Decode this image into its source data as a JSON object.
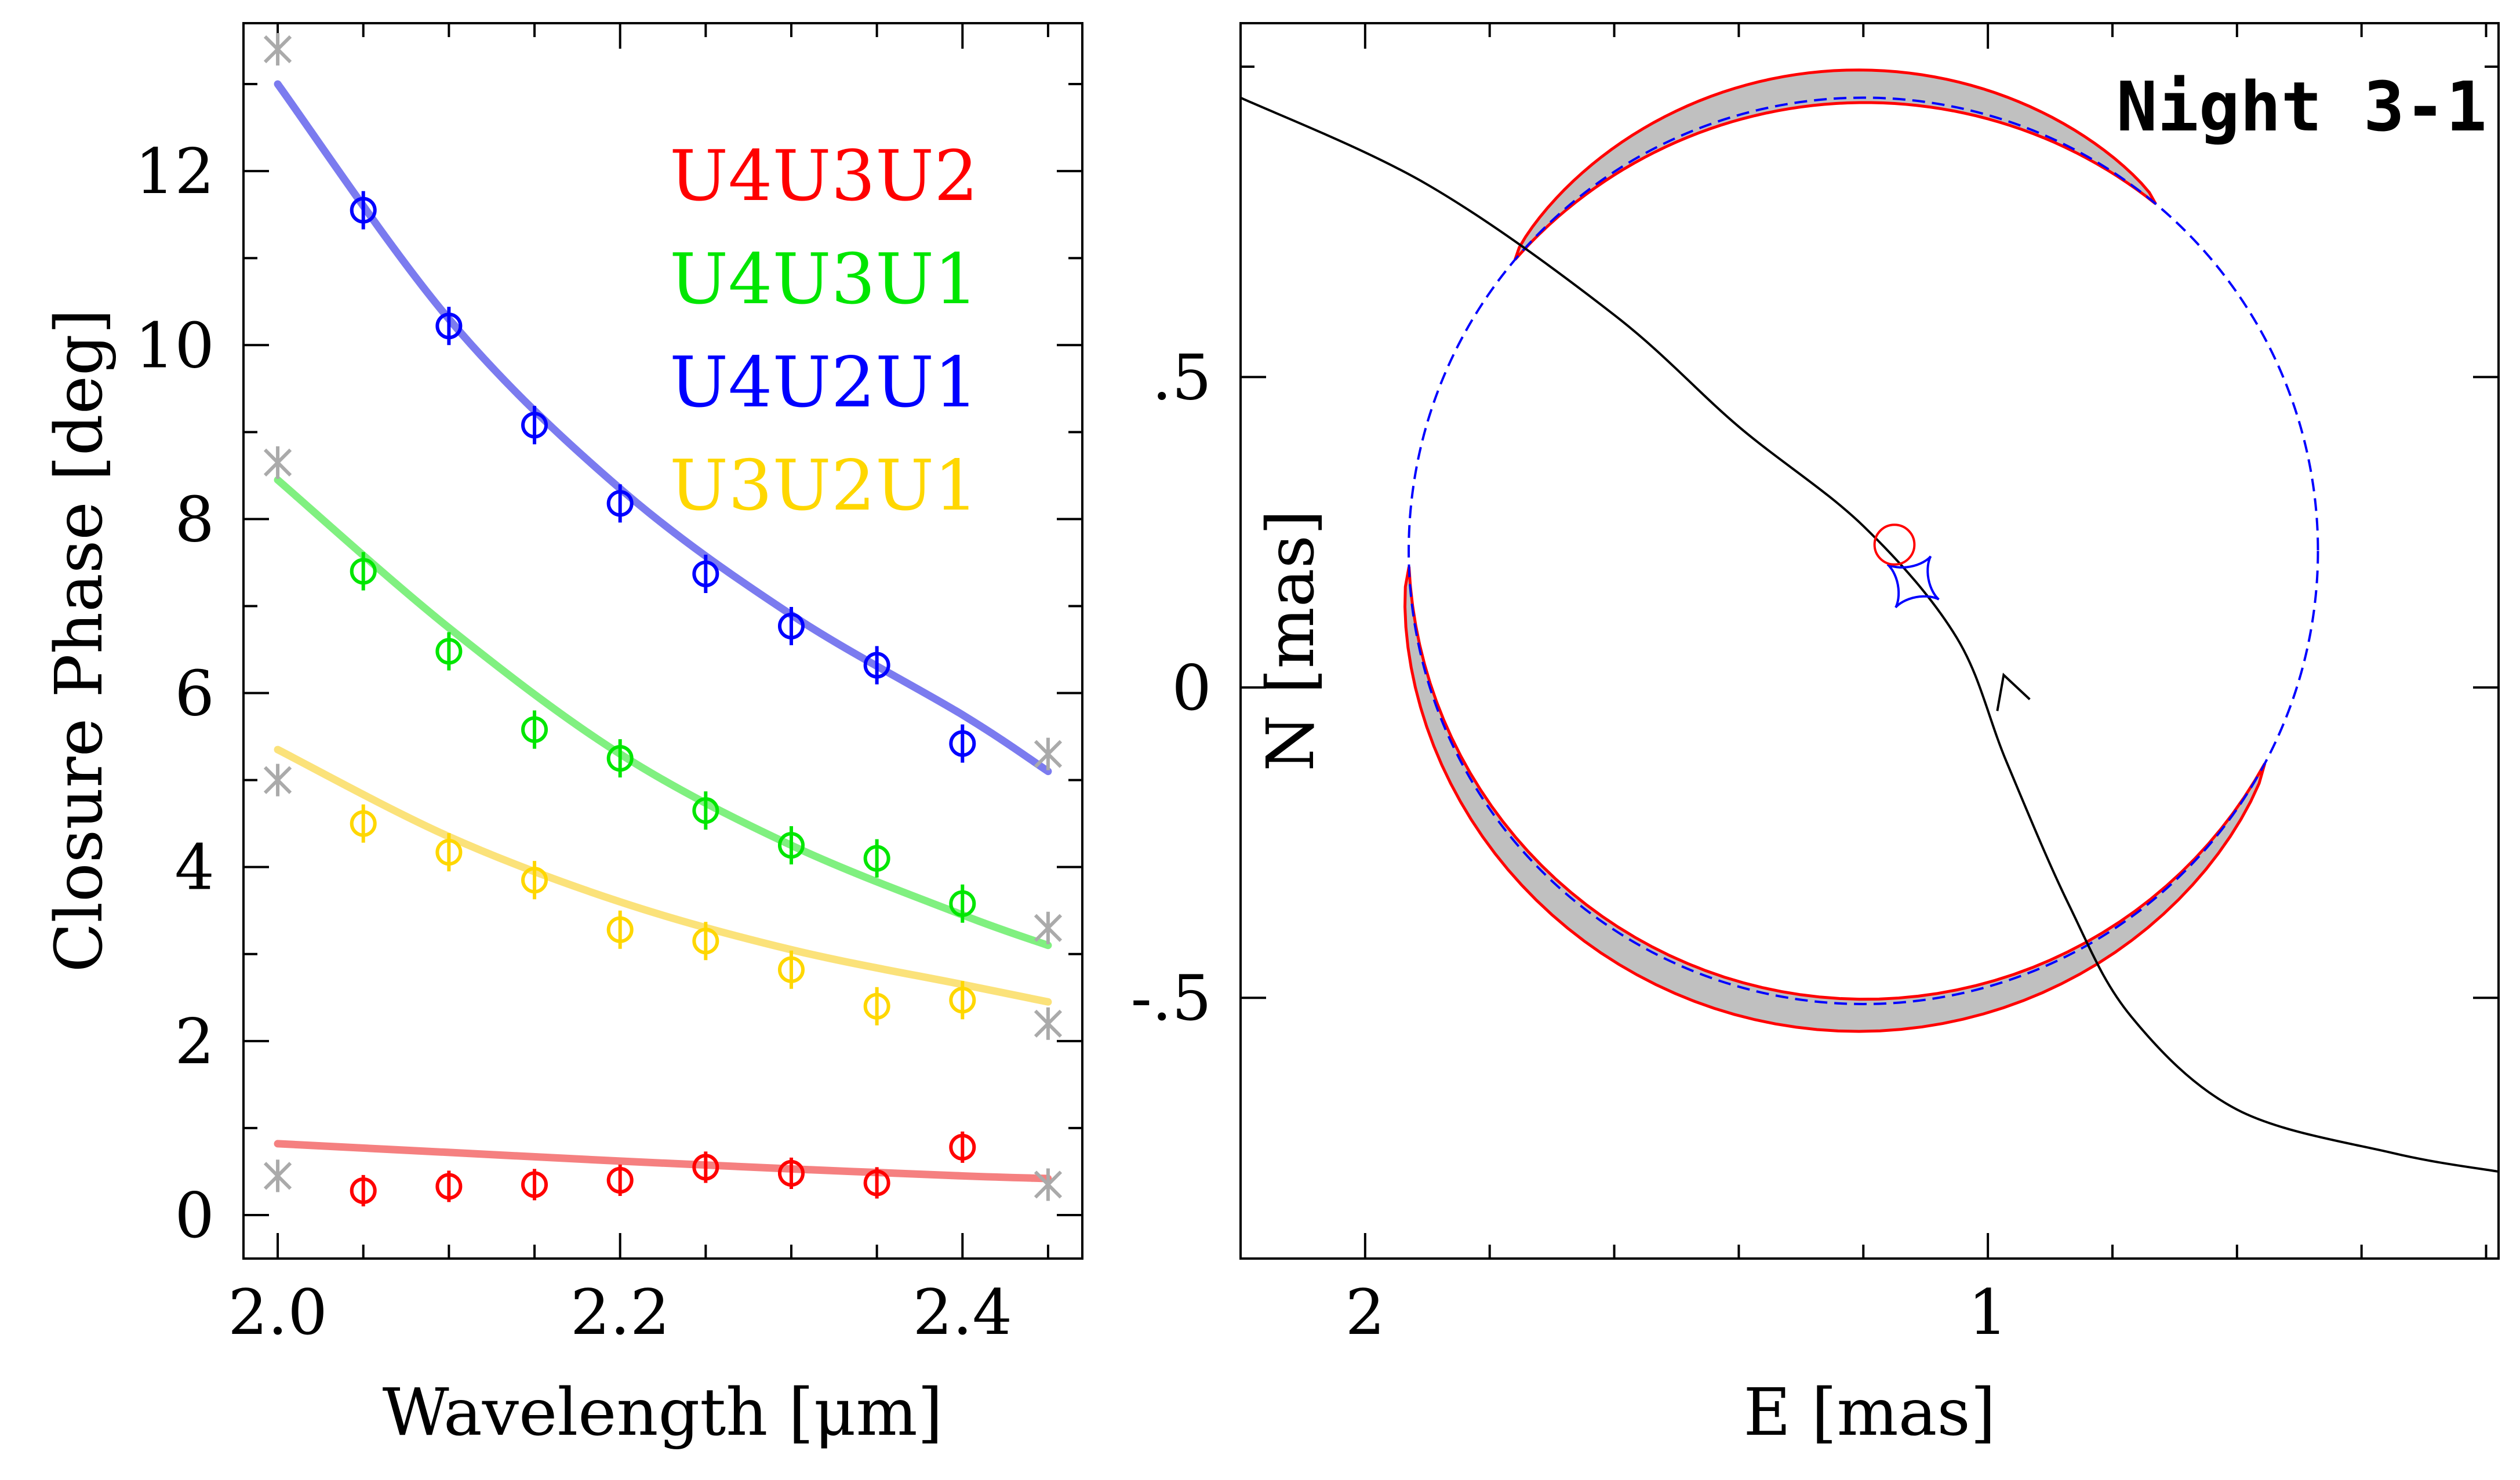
{
  "chart_data": [
    {
      "type": "scatter",
      "xlabel": "Wavelength [μm]",
      "ylabel": "Closure Phase [deg]",
      "xlim": [
        1.98,
        2.47
      ],
      "ylim": [
        -0.5,
        13.7
      ],
      "xticks": [
        2.0,
        2.2,
        2.4
      ],
      "xtick_labels": [
        "2.0",
        "2.2",
        "2.4"
      ],
      "yticks": [
        0,
        2,
        4,
        6,
        8,
        10,
        12
      ],
      "ytick_labels": [
        "0",
        "2",
        "4",
        "6",
        "8",
        "10",
        "12"
      ],
      "legend_position": "top-right",
      "x": [
        2.05,
        2.1,
        2.15,
        2.2,
        2.25,
        2.3,
        2.35,
        2.4
      ],
      "x_excluded": [
        2.0,
        2.45
      ],
      "model_x": [
        2.0,
        2.1,
        2.2,
        2.3,
        2.4,
        2.45
      ],
      "series": [
        {
          "name": "U4U3U2",
          "color": "#ff0000",
          "model_color": "#f58080",
          "values": [
            0.28,
            0.33,
            0.35,
            0.4,
            0.55,
            0.48,
            0.37,
            0.78
          ],
          "errors": [
            0.18,
            0.18,
            0.18,
            0.18,
            0.18,
            0.18,
            0.18,
            0.18
          ],
          "excluded": [
            0.45,
            0.35
          ],
          "model": [
            0.82,
            0.72,
            0.62,
            0.53,
            0.45,
            0.42
          ]
        },
        {
          "name": "U4U3U1",
          "color": "#00e600",
          "model_color": "#80f080",
          "values": [
            7.4,
            6.48,
            5.58,
            5.25,
            4.65,
            4.25,
            4.1,
            3.58
          ],
          "errors": [
            0.22,
            0.22,
            0.22,
            0.22,
            0.22,
            0.22,
            0.22,
            0.22
          ],
          "excluded": [
            8.65,
            3.3
          ],
          "model": [
            8.45,
            6.75,
            5.3,
            4.25,
            3.45,
            3.1
          ]
        },
        {
          "name": "U4U2U1",
          "color": "#0000ff",
          "model_color": "#7b7bef",
          "values": [
            11.55,
            10.22,
            9.08,
            8.18,
            7.37,
            6.77,
            6.32,
            5.42
          ],
          "errors": [
            0.22,
            0.22,
            0.22,
            0.22,
            0.22,
            0.22,
            0.22,
            0.22
          ],
          "excluded": [
            13.4,
            5.3
          ],
          "model": [
            13.0,
            10.3,
            8.35,
            6.9,
            5.75,
            5.1
          ]
        },
        {
          "name": "U3U2U1",
          "color": "#ffd700",
          "model_color": "#fbe27a",
          "values": [
            4.5,
            4.17,
            3.85,
            3.28,
            3.15,
            2.82,
            2.4,
            2.47
          ],
          "errors": [
            0.22,
            0.22,
            0.22,
            0.22,
            0.22,
            0.22,
            0.22,
            0.22
          ],
          "excluded": [
            5.0,
            2.2
          ],
          "model": [
            5.35,
            4.35,
            3.6,
            3.05,
            2.65,
            2.45
          ]
        }
      ]
    },
    {
      "type": "line",
      "label": "Night 3-1",
      "xlabel": "E [mas]",
      "ylabel": "N [mas]",
      "xlim": [
        2.2,
        0.18
      ],
      "ylim": [
        -0.92,
        1.07
      ],
      "xticks": [
        2,
        1
      ],
      "xtick_labels": [
        "2",
        "1"
      ],
      "yticks": [
        0.5,
        0,
        -0.5
      ],
      "ytick_labels": [
        ".5",
        "0",
        "-.5"
      ],
      "einstein_ring": {
        "center": [
          1.2,
          0.22
        ],
        "radius": 0.73,
        "color": "#0000ff",
        "style": "dashed"
      },
      "source": {
        "center": [
          1.15,
          0.23
        ],
        "radius": 0.032,
        "color": "#ff0000"
      },
      "caustic": {
        "center": [
          1.12,
          0.17
        ],
        "size": 0.05,
        "color": "#0000ff"
      },
      "images": {
        "fill": "#c0c0c0",
        "outline": "#ff0000",
        "arcs": [
          {
            "theta_start": 50,
            "theta_end": 140,
            "r_inner": 0.73,
            "r_outer": 0.775
          },
          {
            "theta_start": 182,
            "theta_end": 332,
            "r_inner": 0.73,
            "r_outer": 0.775
          }
        ]
      },
      "trajectory": {
        "color": "#000000",
        "points": [
          [
            2.2,
            0.95
          ],
          [
            1.9,
            0.81
          ],
          [
            1.6,
            0.6
          ],
          [
            1.4,
            0.42
          ],
          [
            1.2,
            0.26
          ],
          [
            1.05,
            0.08
          ],
          [
            0.97,
            -0.12
          ],
          [
            0.87,
            -0.35
          ],
          [
            0.77,
            -0.53
          ],
          [
            0.6,
            -0.68
          ],
          [
            0.35,
            -0.75
          ],
          [
            0.18,
            -0.78
          ]
        ],
        "arrow_at": [
          0.97,
          0.02
        ]
      }
    }
  ]
}
